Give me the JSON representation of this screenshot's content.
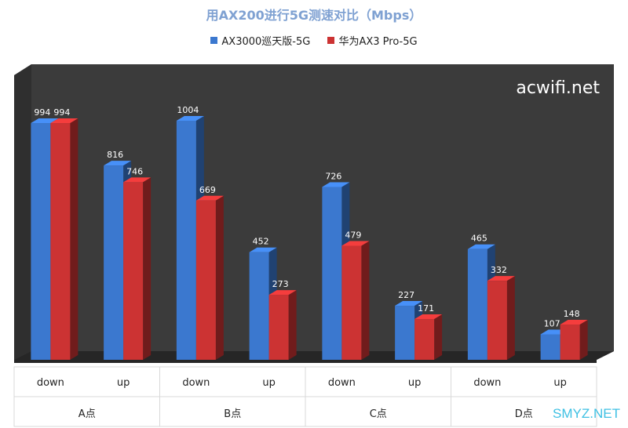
{
  "chart_data": {
    "type": "bar",
    "title": "用AX200进行5G测速对比（Mbps）",
    "groups": [
      "A点",
      "B点",
      "C点",
      "D点"
    ],
    "categories": [
      "down",
      "up",
      "down",
      "up",
      "down",
      "up",
      "down",
      "up"
    ],
    "series": [
      {
        "name": "AX3000巡天版-5G",
        "color": "#3b78cf",
        "values": [
          994,
          816,
          1004,
          452,
          726,
          227,
          465,
          107
        ]
      },
      {
        "name": "华为AX3 Pro-5G",
        "color": "#cc3333",
        "values": [
          994,
          746,
          669,
          273,
          479,
          171,
          332,
          148
        ]
      }
    ],
    "ylim": [
      0,
      1004
    ],
    "legend": "top",
    "grid": false
  },
  "watermark": "acwifi.net",
  "corner_mark": "SMYZ.NET",
  "colors": {
    "wall": "#3b3b3b",
    "floor": "#262626",
    "title": "#7fa1d2"
  }
}
